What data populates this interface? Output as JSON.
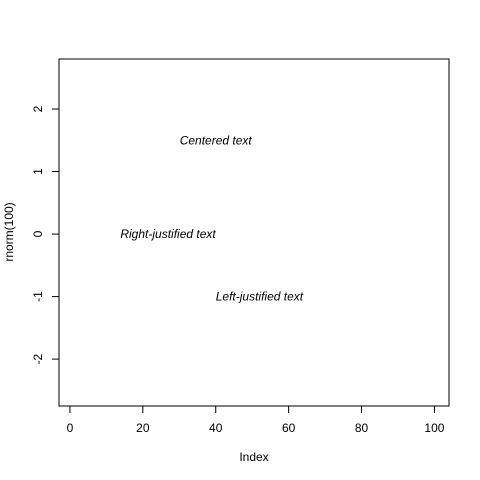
{
  "chart_data": {
    "type": "scatter",
    "xlabel": "Index",
    "ylabel": "rnorm(100)",
    "xlim": [
      -3,
      104
    ],
    "ylim": [
      -2.75,
      2.8
    ],
    "xticks": [
      0,
      20,
      40,
      60,
      80,
      100
    ],
    "yticks": [
      -2,
      -1,
      0,
      1,
      2
    ],
    "xtick_labels": [
      "0",
      "20",
      "40",
      "60",
      "80",
      "100"
    ],
    "ytick_labels": [
      "-2",
      "-1",
      "0",
      "1",
      "2"
    ],
    "points": [],
    "grid": false,
    "annotations": [
      {
        "text": "Centered text",
        "x": 40,
        "y": 1.5,
        "justify": "center"
      },
      {
        "text": "Right-justified text",
        "x": 40,
        "y": 0,
        "justify": "right"
      },
      {
        "text": "Left-justified text",
        "x": 40,
        "y": -1,
        "justify": "left"
      }
    ]
  }
}
